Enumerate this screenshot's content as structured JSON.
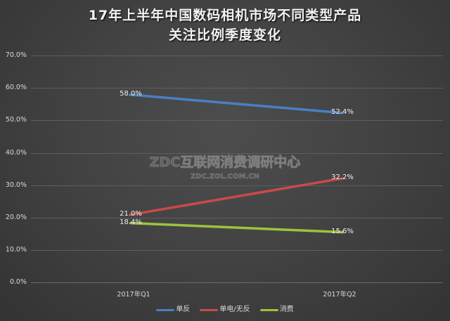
{
  "title": {
    "line1": "17年上半年中国数码相机市场不同类型产品",
    "line2": "关注比例季度变化"
  },
  "y_axis": {
    "ticks": [
      "70.0%",
      "60.0%",
      "50.0%",
      "40.0%",
      "30.0%",
      "20.0%",
      "10.0%",
      "0.0%"
    ]
  },
  "x_axis": {
    "categories": [
      "2017年Q1",
      "2017年Q2"
    ]
  },
  "series": [
    {
      "name": "单反",
      "color": "#4a7fc4",
      "values": [
        58.0,
        52.4
      ],
      "labels": [
        "58.0%",
        "52.4%"
      ]
    },
    {
      "name": "单电/无反",
      "color": "#c94a4a",
      "values": [
        21.0,
        32.2
      ],
      "labels": [
        "21.0%",
        "32.2%"
      ]
    },
    {
      "name": "消费",
      "color": "#9bc33f",
      "values": [
        18.4,
        15.6
      ],
      "labels": [
        "18.4%",
        "15.6%"
      ]
    }
  ],
  "watermark": {
    "main": "ZDC互联网消费调研中心",
    "sub": "ZDC.ZOL.COM.CN"
  },
  "chart_data": {
    "type": "line",
    "title": "17年上半年中国数码相机市场不同类型产品关注比例季度变化",
    "xlabel": "",
    "ylabel": "",
    "categories": [
      "2017年Q1",
      "2017年Q2"
    ],
    "series": [
      {
        "name": "单反",
        "values": [
          58.0,
          52.4
        ]
      },
      {
        "name": "单电/无反",
        "values": [
          21.0,
          32.2
        ]
      },
      {
        "name": "消费",
        "values": [
          18.4,
          15.6
        ]
      }
    ],
    "ylim": [
      0,
      70
    ],
    "y_ticks": [
      "0.0%",
      "10.0%",
      "20.0%",
      "30.0%",
      "40.0%",
      "50.0%",
      "60.0%",
      "70.0%"
    ],
    "unit": "%",
    "grid": true,
    "legend_position": "bottom",
    "data_labels": true
  }
}
